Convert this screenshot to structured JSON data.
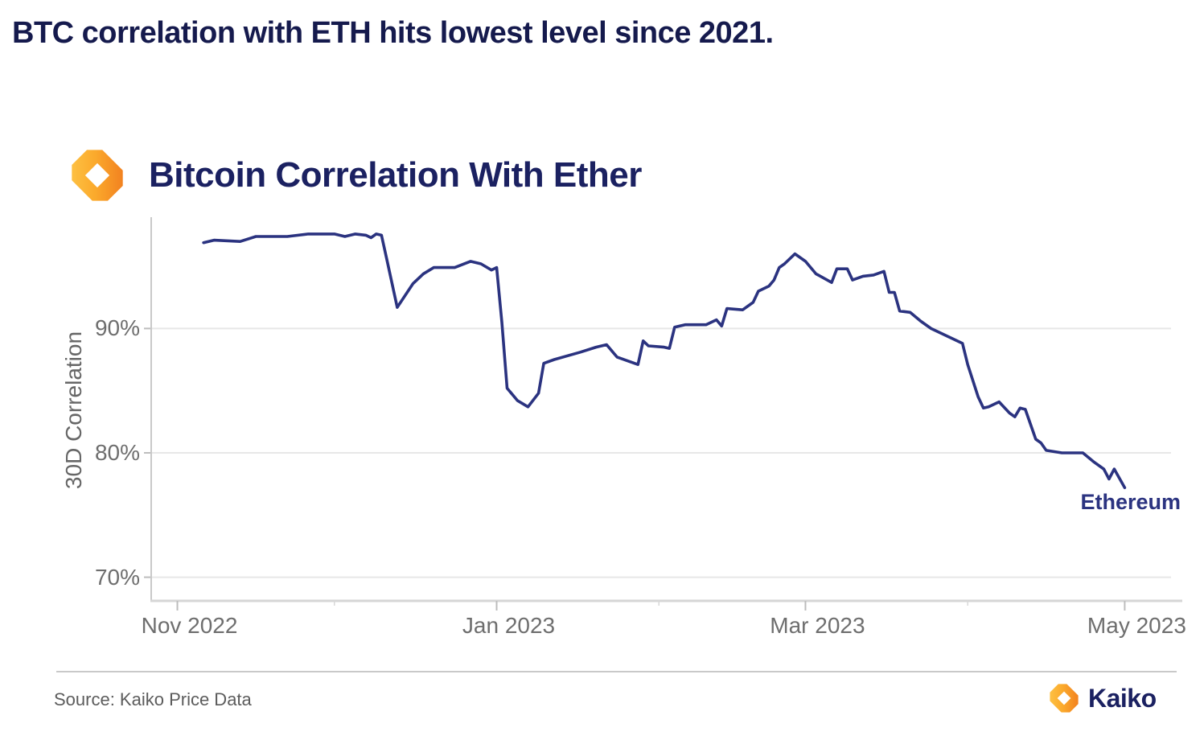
{
  "page": {
    "headline": "BTC correlation with ETH hits lowest level since 2021.",
    "source_note": "Source: Kaiko Price Data",
    "footer_brand": "Kaiko"
  },
  "chart": {
    "title": "Bitcoin Correlation With Ether",
    "end_label": "Ethereum",
    "colors": {
      "headline": "#151a4d",
      "title_navy": "#1b2161",
      "line": "#2b3380",
      "axis_text": "#6e6e6e",
      "grid": "#e7e7e7",
      "axis_line": "#c9c9c9",
      "tick": "#bdbdbd",
      "logo_gold": "#FDB92D",
      "logo_orange": "#F28220"
    }
  },
  "chart_data": {
    "type": "line",
    "title": "Bitcoin Correlation With Ether",
    "xlabel": "",
    "ylabel": "30D Correlation",
    "legend_position": "end-of-line",
    "grid": "horizontal",
    "xlim": [
      "2022-10-27",
      "2023-05-12"
    ],
    "ylim": [
      68.1,
      98.95
    ],
    "x_ticks": [
      {
        "label": "Nov 2022",
        "date": "2022-11-01"
      },
      {
        "label": "Jan 2023",
        "date": "2023-01-01"
      },
      {
        "label": "Mar 2023",
        "date": "2023-03-01"
      },
      {
        "label": "May 2023",
        "date": "2023-05-01"
      }
    ],
    "x_minor_ticks": [
      "2022-12-01",
      "2023-02-01",
      "2023-04-01"
    ],
    "y_ticks": [
      {
        "label": "90%",
        "value": 90
      },
      {
        "label": "80%",
        "value": 80
      },
      {
        "label": "70%",
        "value": 70
      }
    ],
    "series": [
      {
        "name": "Ethereum",
        "points": [
          [
            "2022-11-06",
            96.9
          ],
          [
            "2022-11-08",
            97.1
          ],
          [
            "2022-11-13",
            97.0
          ],
          [
            "2022-11-16",
            97.4
          ],
          [
            "2022-11-22",
            97.4
          ],
          [
            "2022-11-26",
            97.6
          ],
          [
            "2022-12-01",
            97.6
          ],
          [
            "2022-12-03",
            97.4
          ],
          [
            "2022-12-05",
            97.6
          ],
          [
            "2022-12-07",
            97.5
          ],
          [
            "2022-12-08",
            97.3
          ],
          [
            "2022-12-09",
            97.6
          ],
          [
            "2022-12-10",
            97.5
          ],
          [
            "2022-12-11",
            95.6
          ],
          [
            "2022-12-13",
            91.7
          ],
          [
            "2022-12-16",
            93.6
          ],
          [
            "2022-12-18",
            94.4
          ],
          [
            "2022-12-20",
            94.9
          ],
          [
            "2022-12-24",
            94.9
          ],
          [
            "2022-12-27",
            95.4
          ],
          [
            "2022-12-29",
            95.2
          ],
          [
            "2022-12-31",
            94.7
          ],
          [
            "2023-01-01",
            94.9
          ],
          [
            "2023-01-02",
            90.5
          ],
          [
            "2023-01-03",
            85.2
          ],
          [
            "2023-01-05",
            84.2
          ],
          [
            "2023-01-07",
            83.7
          ],
          [
            "2023-01-09",
            84.8
          ],
          [
            "2023-01-10",
            87.2
          ],
          [
            "2023-01-12",
            87.5
          ],
          [
            "2023-01-17",
            88.1
          ],
          [
            "2023-01-20",
            88.5
          ],
          [
            "2023-01-22",
            88.7
          ],
          [
            "2023-01-24",
            87.7
          ],
          [
            "2023-01-26",
            87.4
          ],
          [
            "2023-01-28",
            87.1
          ],
          [
            "2023-01-29",
            89.0
          ],
          [
            "2023-01-30",
            88.6
          ],
          [
            "2023-02-02",
            88.5
          ],
          [
            "2023-02-03",
            88.4
          ],
          [
            "2023-02-04",
            90.1
          ],
          [
            "2023-02-06",
            90.3
          ],
          [
            "2023-02-10",
            90.3
          ],
          [
            "2023-02-12",
            90.7
          ],
          [
            "2023-02-13",
            90.2
          ],
          [
            "2023-02-14",
            91.6
          ],
          [
            "2023-02-17",
            91.5
          ],
          [
            "2023-02-19",
            92.1
          ],
          [
            "2023-02-20",
            93.0
          ],
          [
            "2023-02-22",
            93.4
          ],
          [
            "2023-02-23",
            93.9
          ],
          [
            "2023-02-24",
            94.9
          ],
          [
            "2023-02-25",
            95.2
          ],
          [
            "2023-02-27",
            96.0
          ],
          [
            "2023-03-01",
            95.4
          ],
          [
            "2023-03-03",
            94.4
          ],
          [
            "2023-03-06",
            93.7
          ],
          [
            "2023-03-07",
            94.8
          ],
          [
            "2023-03-09",
            94.8
          ],
          [
            "2023-03-10",
            93.9
          ],
          [
            "2023-03-12",
            94.2
          ],
          [
            "2023-03-14",
            94.3
          ],
          [
            "2023-03-16",
            94.6
          ],
          [
            "2023-03-17",
            92.9
          ],
          [
            "2023-03-18",
            92.9
          ],
          [
            "2023-03-19",
            91.4
          ],
          [
            "2023-03-21",
            91.3
          ],
          [
            "2023-03-23",
            90.6
          ],
          [
            "2023-03-25",
            90.0
          ],
          [
            "2023-03-31",
            88.8
          ],
          [
            "2023-04-01",
            87.1
          ],
          [
            "2023-04-03",
            84.5
          ],
          [
            "2023-04-04",
            83.6
          ],
          [
            "2023-04-05",
            83.7
          ],
          [
            "2023-04-07",
            84.1
          ],
          [
            "2023-04-09",
            83.2
          ],
          [
            "2023-04-10",
            82.9
          ],
          [
            "2023-04-11",
            83.6
          ],
          [
            "2023-04-12",
            83.5
          ],
          [
            "2023-04-14",
            81.1
          ],
          [
            "2023-04-15",
            80.8
          ],
          [
            "2023-04-16",
            80.2
          ],
          [
            "2023-04-19",
            80.0
          ],
          [
            "2023-04-23",
            80.0
          ],
          [
            "2023-04-25",
            79.3
          ],
          [
            "2023-04-27",
            78.7
          ],
          [
            "2023-04-28",
            77.9
          ],
          [
            "2023-04-29",
            78.7
          ],
          [
            "2023-05-01",
            77.2
          ]
        ]
      }
    ]
  }
}
